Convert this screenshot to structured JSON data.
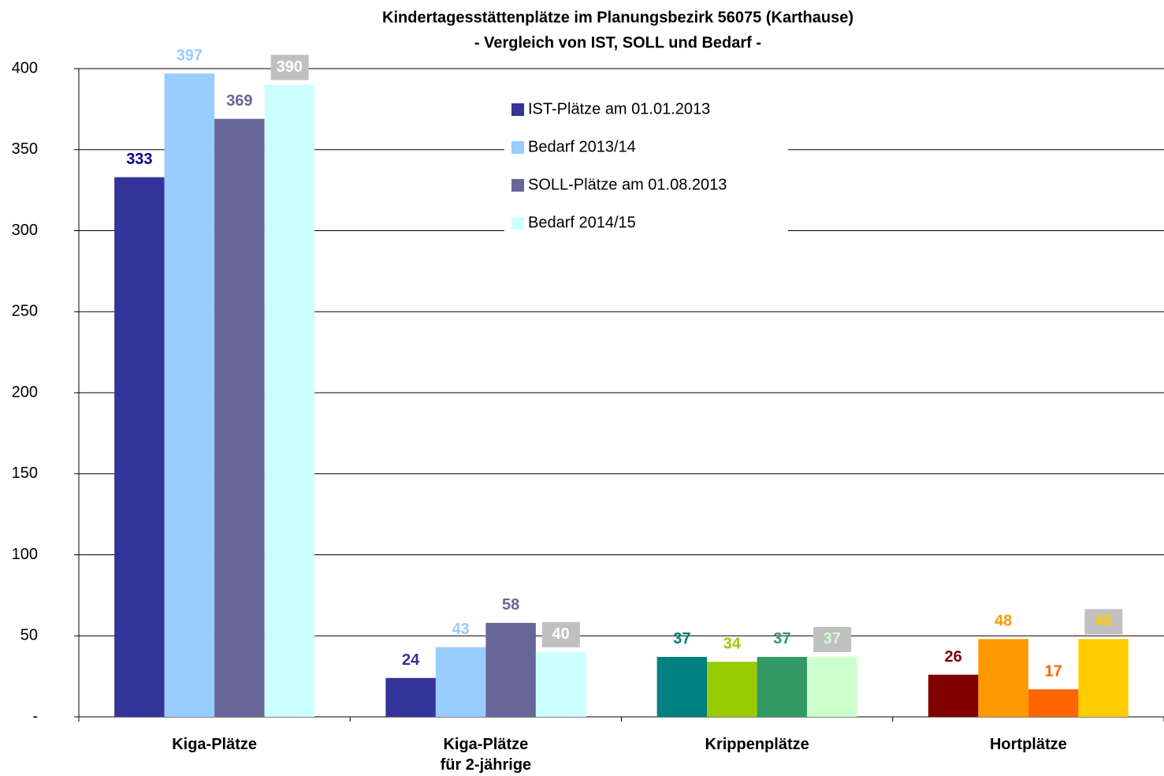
{
  "chart_data": {
    "type": "bar",
    "title": "Kindertagesstättenplätze im Planungsbezirk 56075 (Karthause)",
    "subtitle": "- Vergleich von IST, SOLL und Bedarf -",
    "categories": [
      "Kiga-Plätze",
      "Kiga-Plätze\nfür 2-jährige",
      "Krippenplätze",
      "Hortplätze"
    ],
    "series": [
      {
        "name": "IST-Plätze am 01.01.2013",
        "color": "#333399",
        "colors": [
          "#333399",
          "#333399",
          "#008080",
          "#800000"
        ],
        "values": [
          333,
          24,
          37,
          26
        ]
      },
      {
        "name": "Bedarf 2013/14",
        "color": "#99ccff",
        "colors": [
          "#99ccff",
          "#99ccff",
          "#99cc00",
          "#ff9900"
        ],
        "values": [
          397,
          43,
          34,
          48
        ]
      },
      {
        "name": "SOLL-Plätze am 01.08.2013",
        "color": "#666699",
        "colors": [
          "#666699",
          "#666699",
          "#339966",
          "#ff6600"
        ],
        "values": [
          369,
          58,
          37,
          17
        ]
      },
      {
        "name": "Bedarf 2014/15",
        "color": "#ccffff",
        "colors": [
          "#ccffff",
          "#ccffff",
          "#ccffcc",
          "#ffcc00"
        ],
        "values": [
          390,
          40,
          37,
          48
        ]
      }
    ],
    "ylim": [
      0,
      400
    ],
    "yticks": [
      {
        "value": 0,
        "label": "-"
      },
      50,
      100,
      150,
      200,
      250,
      300,
      350,
      400
    ],
    "grid": true,
    "legend": "top"
  }
}
